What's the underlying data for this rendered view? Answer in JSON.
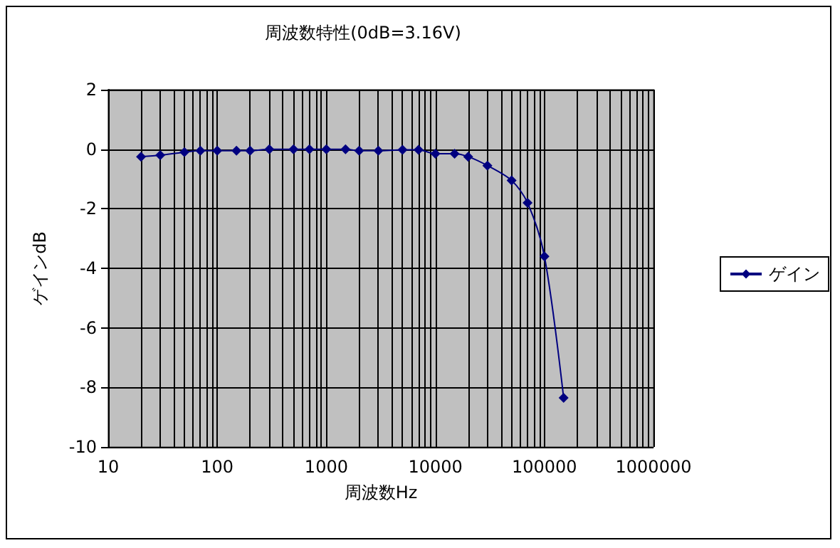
{
  "chart_data": {
    "type": "line",
    "title": "周波数特性(0dB=3.16V)",
    "xlabel": "周波数Hz",
    "ylabel": "ゲインdB",
    "log": "x",
    "xlim": [
      10,
      1000000
    ],
    "xticks": [
      10,
      {
        "value": 20,
        "label": null
      },
      {
        "value": 30,
        "label": null
      },
      {
        "value": 40,
        "label": null
      },
      {
        "value": 50,
        "label": null
      },
      {
        "value": 60,
        "label": null
      },
      {
        "value": 70,
        "label": null
      },
      {
        "value": 80,
        "label": null
      },
      {
        "value": 90,
        "label": null
      },
      100,
      {
        "value": 200,
        "label": null
      },
      {
        "value": 300,
        "label": null
      },
      {
        "value": 400,
        "label": null
      },
      {
        "value": 500,
        "label": null
      },
      {
        "value": 600,
        "label": null
      },
      {
        "value": 700,
        "label": null
      },
      {
        "value": 800,
        "label": null
      },
      {
        "value": 900,
        "label": null
      },
      1000,
      {
        "value": 2000,
        "label": null
      },
      {
        "value": 3000,
        "label": null
      },
      {
        "value": 4000,
        "label": null
      },
      {
        "value": 5000,
        "label": null
      },
      {
        "value": 6000,
        "label": null
      },
      {
        "value": 7000,
        "label": null
      },
      {
        "value": 8000,
        "label": null
      },
      {
        "value": 9000,
        "label": null
      },
      10000,
      {
        "value": 20000,
        "label": null
      },
      {
        "value": 30000,
        "label": null
      },
      {
        "value": 40000,
        "label": null
      },
      {
        "value": 50000,
        "label": null
      },
      {
        "value": 60000,
        "label": null
      },
      {
        "value": 70000,
        "label": null
      },
      {
        "value": 80000,
        "label": null
      },
      {
        "value": 90000,
        "label": null
      },
      100000,
      {
        "value": 200000,
        "label": null
      },
      {
        "value": 300000,
        "label": null
      },
      {
        "value": 400000,
        "label": null
      },
      {
        "value": 500000,
        "label": null
      },
      {
        "value": 600000,
        "label": null
      },
      {
        "value": 700000,
        "label": null
      },
      {
        "value": 800000,
        "label": null
      },
      {
        "value": 900000,
        "label": null
      },
      1000000
    ],
    "ylim": [
      -10,
      2
    ],
    "yticks": [
      -10,
      -8,
      -6,
      -4,
      -2,
      0,
      2
    ],
    "grid": true,
    "legend": "right",
    "marker": "diamond",
    "line_style": "solid",
    "x": [
      20,
      30,
      50,
      70,
      100,
      150,
      200,
      300,
      500,
      700,
      1000,
      1500,
      2000,
      3000,
      5000,
      7000,
      10000,
      15000,
      20000,
      30000,
      50000,
      70000,
      100000,
      150000
    ],
    "series": [
      {
        "name": "ゲイン",
        "color": "#000080",
        "values": [
          -0.25,
          -0.2,
          -0.1,
          -0.05,
          -0.05,
          -0.05,
          -0.05,
          0,
          0,
          0,
          0,
          0,
          -0.05,
          -0.05,
          -0.02,
          -0.02,
          -0.15,
          -0.15,
          -0.25,
          -0.55,
          -1.05,
          -1.8,
          -3.6,
          -8.35
        ]
      }
    ]
  }
}
